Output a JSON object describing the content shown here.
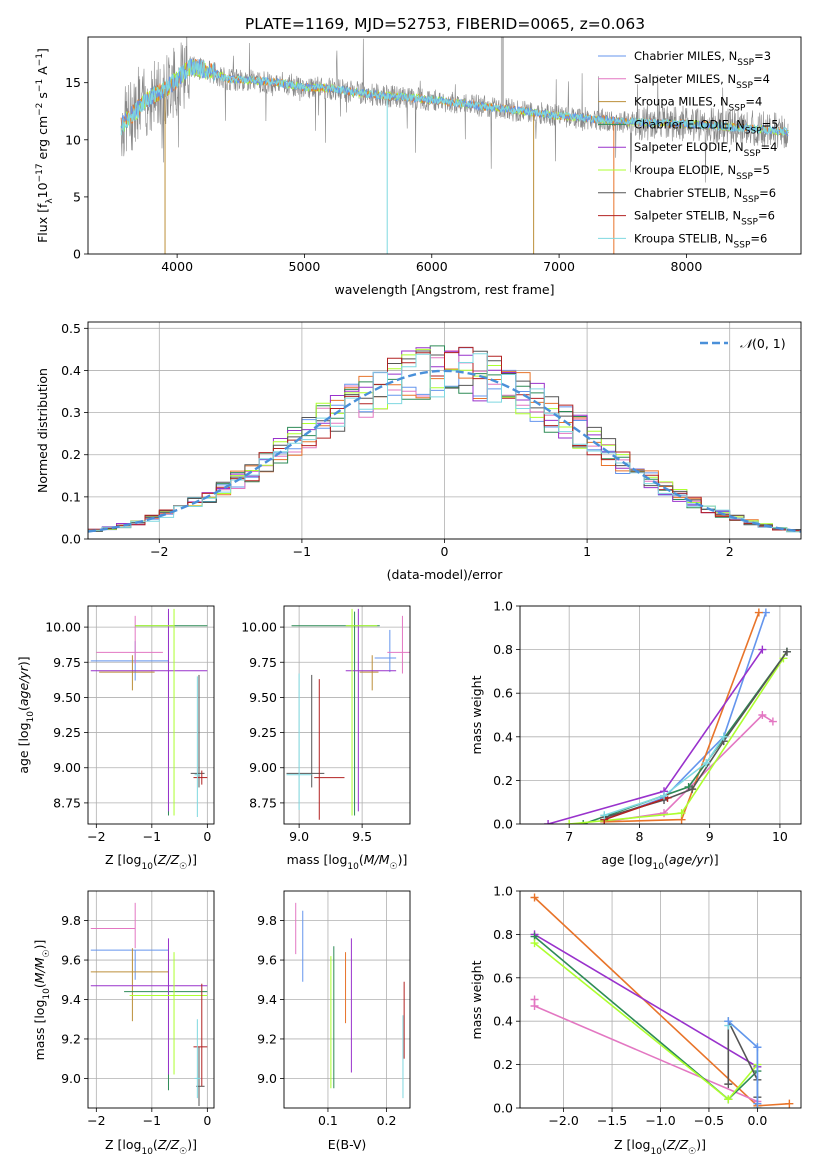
{
  "figure_title": "PLATE=1169, MJD=52753, FIBERID=0065, z=0.063",
  "colors": {
    "C-MILES": "#6495ED",
    "S-MILES": "#E377C2",
    "K-MILES": "#BC8F3A",
    "C-ELODIE": "#2E8B57",
    "S-ELODIE": "#9932CC",
    "K-ELODIE": "#ADFF2F",
    "C-STELIB": "#555555",
    "S-STELIB": "#B22222",
    "K-STELIB": "#7FD8E0",
    "orange": "#E8742A",
    "data": "#888888"
  },
  "chart_data": [
    {
      "id": "spectrum",
      "type": "line",
      "title": "",
      "xlabel": "wavelength [Angstrom, rest frame]",
      "ylabel": "Flux [f_λ 10^-17 erg cm^-2 s^-1 A^-1]",
      "xlim": [
        3300,
        8900
      ],
      "ylim": [
        0,
        19
      ],
      "xticks": [
        4000,
        5000,
        6000,
        7000,
        8000
      ],
      "yticks": [
        0,
        5,
        10,
        15
      ],
      "grid": false,
      "legend_position": "top-right",
      "legend": [
        {
          "key": "C-MILES",
          "label": "Chabrier MILES, N",
          "sub": "SSP",
          "tail": "=3"
        },
        {
          "key": "S-MILES",
          "label": "Salpeter MILES, N",
          "sub": "SSP",
          "tail": "=4"
        },
        {
          "key": "K-MILES",
          "label": "Kroupa MILES, N",
          "sub": "SSP",
          "tail": "=4"
        },
        {
          "key": "C-ELODIE",
          "label": "Chabrier ELODIE, N",
          "sub": "SSP",
          "tail": "=5"
        },
        {
          "key": "S-ELODIE",
          "label": "Salpeter ELODIE, N",
          "sub": "SSP",
          "tail": "=4"
        },
        {
          "key": "K-ELODIE",
          "label": "Kroupa ELODIE, N",
          "sub": "SSP",
          "tail": "=5"
        },
        {
          "key": "C-STELIB",
          "label": "Chabrier STELIB, N",
          "sub": "SSP",
          "tail": "=6"
        },
        {
          "key": "S-STELIB",
          "label": "Salpeter STELIB, N",
          "sub": "SSP",
          "tail": "=6"
        },
        {
          "key": "K-STELIB",
          "label": "Kroupa STELIB, N",
          "sub": "SSP",
          "tail": "=6"
        }
      ],
      "continuum": {
        "x": [
          3560,
          3700,
          3800,
          3900,
          4000,
          4100,
          4200,
          4300,
          4400,
          4600,
          4800,
          5000,
          5200,
          5500,
          6000,
          6500,
          7000,
          7500,
          8000,
          8500,
          8800
        ],
        "y": [
          11.2,
          12.8,
          13.8,
          14.4,
          15.3,
          16.4,
          16.2,
          15.8,
          15.3,
          15.2,
          15.0,
          14.6,
          14.5,
          14.0,
          13.5,
          12.8,
          12.1,
          11.6,
          11.4,
          11.0,
          10.7
        ]
      },
      "dips": [
        {
          "x": 3905,
          "y": 0,
          "key": "K-MILES"
        },
        {
          "x": 5650,
          "y": 0,
          "key": "K-STELIB"
        },
        {
          "x": 6800,
          "y": 0,
          "key": "K-MILES"
        },
        {
          "x": 7430,
          "y": 0,
          "key": "orange"
        }
      ]
    },
    {
      "id": "residuals",
      "type": "histogram",
      "xlabel": "(data-model)/error",
      "ylabel": "Normed distribution",
      "xlim": [
        -2.5,
        2.5
      ],
      "ylim": [
        0,
        0.515
      ],
      "xticks": [
        -2,
        -1,
        0,
        1,
        2
      ],
      "yticks": [
        0.0,
        0.1,
        0.2,
        0.3,
        0.4,
        0.5
      ],
      "grid": true,
      "legend_position": "top-right",
      "reference": {
        "name": "N(0,1)",
        "mu": 0,
        "sigma": 1
      },
      "bin_width": 0.1
    },
    {
      "id": "age-vs-Z",
      "type": "errorbar",
      "xlabel": "Z [log10(Z/Z☉)]",
      "ylabel": "age [log10(age/yr)]",
      "xlim": [
        -2.15,
        0.12
      ],
      "ylim": [
        8.6,
        10.15
      ],
      "xticks": [
        -2,
        -1,
        0
      ],
      "yticks": [
        8.75,
        9.0,
        9.25,
        9.5,
        9.75,
        10.0
      ],
      "grid": true,
      "points": [
        {
          "key": "C-MILES",
          "x": -1.3,
          "xerr": [
            0.8,
            0.6
          ],
          "y": 9.76,
          "yerr": [
            0.14,
            0.14
          ]
        },
        {
          "key": "S-MILES",
          "x": -1.3,
          "xerr": [
            0.7,
            0.5
          ],
          "y": 9.82,
          "yerr": [
            0.08,
            0.26
          ]
        },
        {
          "key": "K-MILES",
          "x": -1.35,
          "xerr": [
            0.6,
            0.4
          ],
          "y": 9.68,
          "yerr": [
            0.13,
            0.12
          ]
        },
        {
          "key": "C-ELODIE",
          "x": -0.7,
          "xerr": [
            0.6,
            0.7
          ],
          "y": 10.01,
          "yerr": [
            1.35,
            0.1
          ]
        },
        {
          "key": "S-ELODIE",
          "x": -0.7,
          "xerr": [
            1.4,
            0.7
          ],
          "y": 9.69,
          "yerr": [
            1.0,
            0.44
          ]
        },
        {
          "key": "K-ELODIE",
          "x": -0.6,
          "xerr": [
            0.7,
            0.0
          ],
          "y": 10.01,
          "yerr": [
            1.35,
            0.12
          ]
        },
        {
          "key": "C-STELIB",
          "x": -0.15,
          "xerr": [
            0.15,
            0.1
          ],
          "y": 8.96,
          "yerr": [
            0.1,
            0.7
          ]
        },
        {
          "key": "S-STELIB",
          "x": -0.1,
          "xerr": [
            0.15,
            0.1
          ],
          "y": 8.93,
          "yerr": [
            0.05,
            0.05
          ]
        },
        {
          "key": "K-STELIB",
          "x": -0.18,
          "xerr": [
            0.05,
            0.05
          ],
          "y": 8.95,
          "yerr": [
            0.3,
            0.7
          ]
        }
      ]
    },
    {
      "id": "age-vs-mass",
      "type": "errorbar",
      "xlabel": "mass [log10(M/M☉)]",
      "ylabel": "",
      "xlim": [
        8.88,
        9.88
      ],
      "ylim": [
        8.6,
        10.15
      ],
      "xticks": [
        9.0,
        9.5
      ],
      "yticks": [
        8.75,
        9.0,
        9.25,
        9.5,
        9.75,
        10.0
      ],
      "grid": true,
      "points": [
        {
          "key": "C-MILES",
          "x": 9.72,
          "xerr": [
            0.12,
            0.05
          ],
          "y": 9.78,
          "yerr": [
            0.1,
            0.2
          ]
        },
        {
          "key": "S-MILES",
          "x": 9.82,
          "xerr": [
            0.12,
            0.06
          ],
          "y": 9.82,
          "yerr": [
            0.15,
            0.26
          ]
        },
        {
          "key": "K-MILES",
          "x": 9.58,
          "xerr": [
            0.1,
            0.05
          ],
          "y": 9.68,
          "yerr": [
            0.13,
            0.12
          ]
        },
        {
          "key": "C-ELODIE",
          "x": 9.44,
          "xerr": [
            0.5,
            0.2
          ],
          "y": 10.01,
          "yerr": [
            1.35,
            0.1
          ]
        },
        {
          "key": "S-ELODIE",
          "x": 9.47,
          "xerr": [
            0.1,
            0.3
          ],
          "y": 9.69,
          "yerr": [
            1.0,
            0.44
          ]
        },
        {
          "key": "K-ELODIE",
          "x": 9.42,
          "xerr": [
            0.05,
            0.2
          ],
          "y": 10.01,
          "yerr": [
            1.35,
            0.12
          ]
        },
        {
          "key": "C-STELIB",
          "x": 9.1,
          "xerr": [
            0.2,
            0.1
          ],
          "y": 8.96,
          "yerr": [
            0.1,
            0.7
          ]
        },
        {
          "key": "S-STELIB",
          "x": 9.16,
          "xerr": [
            0.04,
            0.2
          ],
          "y": 8.93,
          "yerr": [
            0.3,
            0.7
          ]
        },
        {
          "key": "K-STELIB",
          "x": 9.0,
          "xerr": [
            0.1,
            0.1
          ],
          "y": 8.95,
          "yerr": [
            0.25,
            0.72
          ]
        }
      ]
    },
    {
      "id": "weight-vs-age",
      "type": "line",
      "xlabel": "age [log10(age/yr)]",
      "ylabel": "mass weight",
      "xlim": [
        6.3,
        10.3
      ],
      "ylim": [
        0,
        1.0
      ],
      "xticks": [
        7,
        8,
        9,
        10
      ],
      "yticks": [
        0.0,
        0.2,
        0.4,
        0.6,
        0.8,
        1.0
      ],
      "grid": true,
      "series": [
        {
          "key": "C-MILES",
          "x": [
            7.5,
            8.35,
            9.2,
            9.8
          ],
          "y": [
            0.02,
            0.12,
            0.4,
            0.97
          ]
        },
        {
          "key": "S-MILES",
          "x": [
            7.5,
            8.35,
            9.75,
            9.9
          ],
          "y": [
            0.01,
            0.05,
            0.5,
            0.47
          ]
        },
        {
          "key": "orange",
          "x": [
            7.5,
            8.6,
            9.7
          ],
          "y": [
            0.01,
            0.02,
            0.97
          ]
        },
        {
          "key": "C-ELODIE",
          "x": [
            7.2,
            8.7,
            10.1
          ],
          "y": [
            0.0,
            0.17,
            0.79
          ]
        },
        {
          "key": "S-ELODIE",
          "x": [
            6.7,
            8.35,
            9.75
          ],
          "y": [
            0.0,
            0.15,
            0.8
          ]
        },
        {
          "key": "K-ELODIE",
          "x": [
            7.0,
            8.6,
            10.05
          ],
          "y": [
            0.0,
            0.05,
            0.76
          ]
        },
        {
          "key": "C-STELIB",
          "x": [
            7.5,
            8.35,
            8.75,
            9.2,
            10.1
          ],
          "y": [
            0.03,
            0.11,
            0.16,
            0.38,
            0.79
          ]
        },
        {
          "key": "S-STELIB",
          "x": [
            7.5,
            8.4
          ],
          "y": [
            0.02,
            0.12
          ]
        },
        {
          "key": "K-STELIB",
          "x": [
            7.5,
            8.35,
            8.95,
            9.2
          ],
          "y": [
            0.04,
            0.13,
            0.28,
            0.4
          ]
        }
      ]
    },
    {
      "id": "mass-vs-Z",
      "type": "errorbar",
      "xlabel": "Z [log10(Z/Z☉)]",
      "ylabel": "mass [log10(M/M☉)]",
      "xlim": [
        -2.15,
        0.12
      ],
      "ylim": [
        8.85,
        9.95
      ],
      "xticks": [
        -2,
        -1,
        0
      ],
      "yticks": [
        9.0,
        9.2,
        9.4,
        9.6,
        9.8
      ],
      "grid": true,
      "points": [
        {
          "key": "C-MILES",
          "x": -1.3,
          "xerr": [
            0.8,
            0.6
          ],
          "y": 9.65,
          "yerr": [
            0.15,
            0.0
          ]
        },
        {
          "key": "S-MILES",
          "x": -1.3,
          "xerr": [
            0.8,
            0.0
          ],
          "y": 9.76,
          "yerr": [
            0.1,
            0.13
          ]
        },
        {
          "key": "K-MILES",
          "x": -1.35,
          "xerr": [
            0.75,
            0.65
          ],
          "y": 9.54,
          "yerr": [
            0.25,
            0.12
          ]
        },
        {
          "key": "C-ELODIE",
          "x": -0.7,
          "xerr": [
            0.8,
            0.7
          ],
          "y": 9.44,
          "yerr": [
            0.5,
            0.2
          ]
        },
        {
          "key": "S-ELODIE",
          "x": -0.7,
          "xerr": [
            1.4,
            0.7
          ],
          "y": 9.47,
          "yerr": [
            0.45,
            0.24
          ]
        },
        {
          "key": "K-ELODIE",
          "x": -0.6,
          "xerr": [
            0.8,
            0.6
          ],
          "y": 9.42,
          "yerr": [
            0.4,
            0.22
          ]
        },
        {
          "key": "C-STELIB",
          "x": -0.15,
          "xerr": [
            0.05,
            0.1
          ],
          "y": 8.96,
          "yerr": [
            0.1,
            0.2
          ]
        },
        {
          "key": "S-STELIB",
          "x": -0.1,
          "xerr": [
            0.15,
            0.1
          ],
          "y": 9.16,
          "yerr": [
            0.2,
            0.32
          ]
        },
        {
          "key": "K-STELIB",
          "x": -0.18,
          "xerr": [
            0.05,
            0.05
          ],
          "y": 9.0,
          "yerr": [
            0.1,
            0.3
          ]
        }
      ]
    },
    {
      "id": "mass-vs-ebv",
      "type": "errorbar",
      "xlabel": "E(B-V)",
      "ylabel": "",
      "xlim": [
        0.025,
        0.24
      ],
      "ylim": [
        8.85,
        9.95
      ],
      "xticks": [
        0.1,
        0.2
      ],
      "yticks": [
        9.0,
        9.2,
        9.4,
        9.6,
        9.8
      ],
      "grid": true,
      "points": [
        {
          "key": "S-MILES",
          "x": 0.045,
          "y": 9.76,
          "yerr": [
            0.13,
            0.13
          ]
        },
        {
          "key": "C-MILES",
          "x": 0.057,
          "y": 9.65,
          "yerr": [
            0.16,
            0.2
          ]
        },
        {
          "key": "K-ELODIE",
          "x": 0.105,
          "y": 9.4,
          "yerr": [
            0.45,
            0.22
          ]
        },
        {
          "key": "C-ELODIE",
          "x": 0.11,
          "y": 9.4,
          "yerr": [
            0.45,
            0.27
          ]
        },
        {
          "key": "orange",
          "x": 0.13,
          "y": 9.46,
          "yerr": [
            0.18,
            0.18
          ]
        },
        {
          "key": "S-ELODIE",
          "x": 0.14,
          "y": 9.37,
          "yerr": [
            0.34,
            0.34
          ]
        },
        {
          "key": "K-STELIB",
          "x": 0.228,
          "y": 9.1,
          "yerr": [
            0.2,
            0.22
          ]
        },
        {
          "key": "S-STELIB",
          "x": 0.23,
          "y": 9.25,
          "yerr": [
            0.15,
            0.24
          ]
        }
      ]
    },
    {
      "id": "weight-vs-Z",
      "type": "line",
      "xlabel": "Z [log10(Z/Z☉)]",
      "ylabel": "mass weight",
      "xlim": [
        -2.45,
        0.45
      ],
      "ylim": [
        0,
        1.0
      ],
      "xticks": [
        -2.0,
        -1.5,
        -1.0,
        -0.5,
        0.0
      ],
      "yticks": [
        0.0,
        0.2,
        0.4,
        0.6,
        0.8,
        1.0
      ],
      "grid": true,
      "series": [
        {
          "key": "orange",
          "x": [
            -2.3,
            0.0,
            0.33
          ],
          "y": [
            0.97,
            0.01,
            0.02
          ]
        },
        {
          "key": "S-MILES",
          "x": [
            -2.3,
            -2.3,
            0.0
          ],
          "y": [
            0.5,
            0.47,
            0.03
          ]
        },
        {
          "key": "S-ELODIE",
          "x": [
            -2.3,
            0.0
          ],
          "y": [
            0.8,
            0.19
          ]
        },
        {
          "key": "C-ELODIE",
          "x": [
            -2.3,
            -0.3,
            0.0
          ],
          "y": [
            0.79,
            0.04,
            0.17
          ]
        },
        {
          "key": "K-ELODIE",
          "x": [
            -2.3,
            -0.3,
            0.0
          ],
          "y": [
            0.76,
            0.04,
            0.2
          ]
        },
        {
          "key": "C-STELIB",
          "x": [
            -0.3,
            -0.3,
            0.0,
            0.0
          ],
          "y": [
            0.11,
            0.4,
            0.13,
            0.05
          ]
        },
        {
          "key": "K-STELIB",
          "x": [
            -0.3,
            -0.3,
            0.0,
            0.0
          ],
          "y": [
            0.38,
            0.4,
            0.28,
            0.0
          ]
        },
        {
          "key": "C-MILES",
          "x": [
            -0.3,
            0.0,
            0.0
          ],
          "y": [
            0.4,
            0.28,
            0.02
          ]
        }
      ]
    }
  ]
}
